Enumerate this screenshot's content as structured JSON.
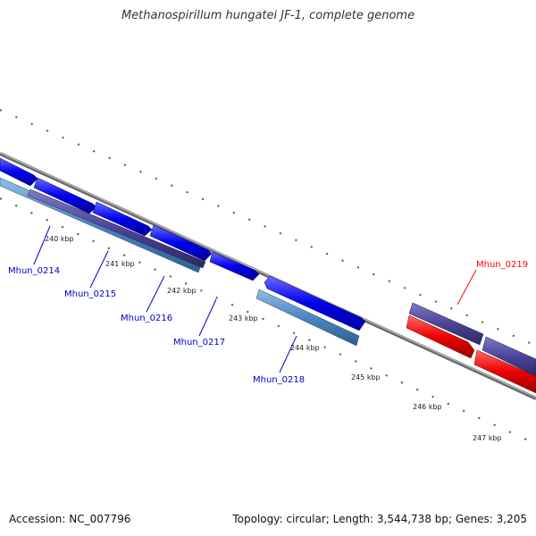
{
  "title": "Methanospirillum hungatei JF-1, complete genome",
  "footer": {
    "accession": "Accession: NC_007796",
    "summary": "Topology: circular; Length: 3,544,738 bp; Genes: 3,205"
  },
  "ticks": [
    "240 kbp",
    "241 kbp",
    "242 kbp",
    "243 kbp",
    "244 kbp",
    "245 kbp",
    "246 kbp",
    "247 kbp"
  ],
  "gene_labels": [
    {
      "name": "Mhun_0214",
      "color": "#0000cc"
    },
    {
      "name": "Mhun_0215",
      "color": "#0000cc"
    },
    {
      "name": "Mhun_0216",
      "color": "#0000cc"
    },
    {
      "name": "Mhun_0217",
      "color": "#0000cc"
    },
    {
      "name": "Mhun_0218",
      "color": "#0000cc"
    },
    {
      "name": "Mhun_0219",
      "color": "#ff0000"
    }
  ],
  "colors": {
    "backbone": "#888888",
    "forward_cds": "#0000ee",
    "reverse_cds": "#ee0000",
    "feature_dark": "#4b4499",
    "feature_light": "#4a86c0",
    "tick_marks": "#1a7a1a"
  }
}
